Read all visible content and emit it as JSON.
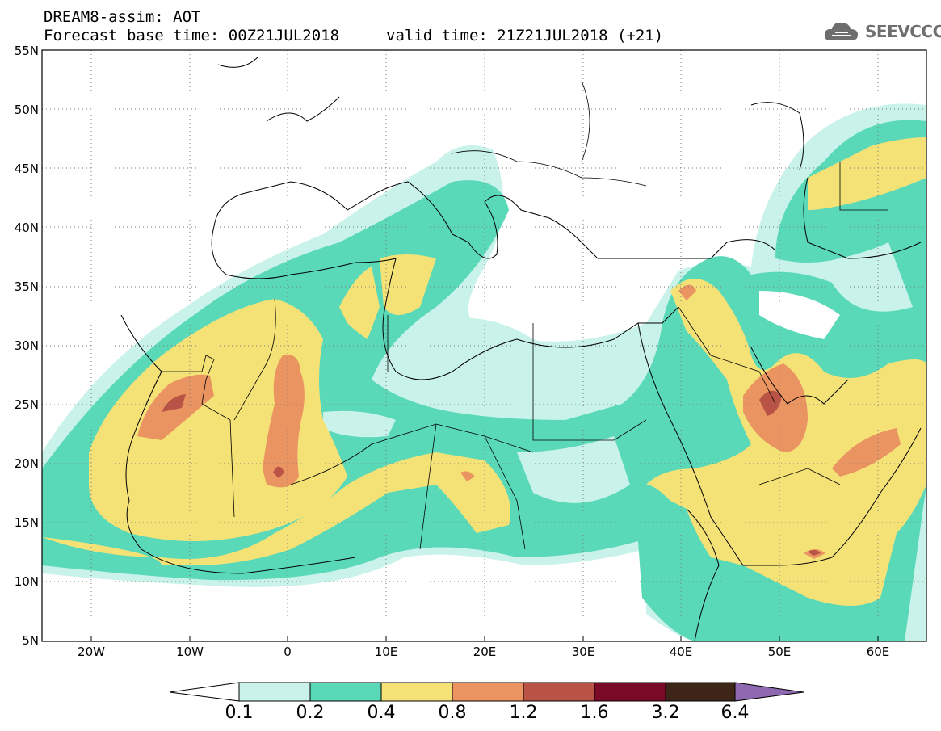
{
  "header": {
    "title": "DREAM8-assim: AOT",
    "base_time": "Forecast base time: 00Z21JUL2018",
    "valid_time": "valid time: 21Z21JUL2018 (+21)"
  },
  "logo": {
    "text": "SEEVCCC",
    "icon": "cloud-icon",
    "color": "#6e6e6e"
  },
  "axes": {
    "lat_labels": [
      "55N",
      "50N",
      "45N",
      "40N",
      "35N",
      "30N",
      "25N",
      "20N",
      "15N",
      "10N",
      "5N"
    ],
    "lon_labels": [
      "20W",
      "10W",
      "0",
      "10E",
      "20E",
      "30E",
      "40E",
      "50E",
      "60E"
    ]
  },
  "colorbar": {
    "labels": [
      "0.1",
      "0.2",
      "0.4",
      "0.8",
      "1.2",
      "1.6",
      "3.2",
      "6.4"
    ],
    "colors": [
      "#c8f2ea",
      "#5ad9b8",
      "#f5e277",
      "#ea9461",
      "#b85345",
      "#7a0a26",
      "#3d2517",
      "#8e68b0"
    ]
  }
}
